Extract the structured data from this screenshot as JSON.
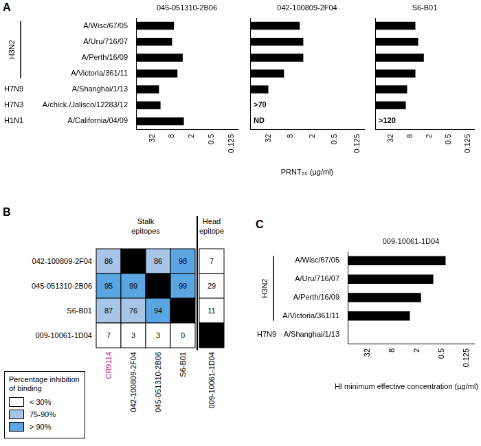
{
  "panel_labels": [
    "A",
    "B",
    "C"
  ],
  "chart_data": [
    {
      "type": "bar",
      "orientation": "horizontal",
      "title": "045-051310-2B06",
      "categories": [
        "A/Wisc/67/05",
        "A/Uru/716/07",
        "A/Perth/16/09",
        "A/Victoria/361/11",
        "A/Shanghai/1/13",
        "A/chick./Jalisco/12283/12",
        "A/California/04/09"
      ],
      "subtypes": [
        "H3N2",
        "H3N2",
        "H3N2",
        "H3N2",
        "H7N9",
        "H7N3",
        "H1N1"
      ],
      "values": [
        7,
        8,
        3.8,
        5.5,
        20,
        18,
        3.5
      ],
      "color": "#000000",
      "log": "x",
      "grid": false,
      "xlim": [
        100,
        0.08
      ],
      "xticks": [
        32,
        8,
        2,
        0.5,
        0.125
      ]
    },
    {
      "type": "bar",
      "orientation": "horizontal",
      "title": "042-100809-2F04",
      "categories": [
        "A/Wisc/67/05",
        "A/Uru/716/07",
        "A/Perth/16/09",
        "A/Victoria/361/11",
        "A/Shanghai/1/13",
        "A/chick./Jalisco/12283/12",
        "A/California/04/09"
      ],
      "values": [
        4.5,
        3.6,
        3.6,
        12,
        32,
        null,
        null
      ],
      "annotations": [
        null,
        null,
        null,
        null,
        null,
        ">70",
        "ND"
      ],
      "color": "#000000",
      "log": "x",
      "grid": false,
      "tick_labels": "x",
      "x_label": "PRNT₅₀ (µg/ml)",
      "xlim": [
        100,
        0.08
      ],
      "xticks": [
        32,
        8,
        2,
        0.5,
        0.125
      ]
    },
    {
      "type": "bar",
      "orientation": "horizontal",
      "title": "S6-B01",
      "categories": [
        "A/Wisc/67/05",
        "A/Uru/716/07",
        "A/Perth/16/09",
        "A/Victoria/361/11",
        "A/Shanghai/1/13",
        "A/chick./Jalisco/12283/12",
        "A/California/04/09"
      ],
      "values": [
        5.5,
        4.5,
        3,
        5.5,
        10,
        11,
        null
      ],
      "annotations": [
        null,
        null,
        null,
        null,
        null,
        null,
        ">120"
      ],
      "color": "#000000",
      "log": "x",
      "grid": false,
      "tick_labels": "x",
      "xlim": [
        100,
        0.08
      ],
      "xticks": [
        32,
        8,
        2,
        0.5,
        0.125
      ]
    },
    {
      "type": "bar",
      "orientation": "horizontal",
      "title": "009-10061-1D04",
      "categories": [
        "A/Wisc/67/05",
        "A/Uru/716/07",
        "A/Perth/16/09",
        "A/Victoria/361/11",
        "A/Shanghai/1/13"
      ],
      "subtypes": [
        "H3N2",
        "H3N2",
        "H3N2",
        "H3N2",
        "H7N9"
      ],
      "values": [
        0.4,
        0.8,
        1.6,
        3,
        null
      ],
      "color": "#000000",
      "log": "x",
      "grid": false,
      "x_label": "HI minimum effective concentration (µg/ml)",
      "xlim": [
        100,
        0.08
      ],
      "xticks": [
        32,
        8,
        2,
        0.5,
        0.125
      ]
    }
  ],
  "table": {
    "columns": [
      {
        "label": "CR9114",
        "color": "#c2188b",
        "group": "Stalk epitopes"
      },
      {
        "label": "042-100809-2F04",
        "color": "#000000",
        "group": "Stalk epitopes"
      },
      {
        "label": "045-051310-2B06",
        "color": "#000000",
        "group": "Stalk epitopes"
      },
      {
        "label": "S6-B01",
        "color": "#000000",
        "group": "Stalk epitopes"
      },
      {
        "label": "009-10061-1D04",
        "color": "#000000",
        "group": "Head epitope"
      }
    ],
    "rows": [
      {
        "label": "042-100809-2F04",
        "values": [
          86,
          null,
          86,
          98,
          7
        ],
        "colors": [
          "#a8c4e6",
          "#000000",
          "#a8c4e6",
          "#5aa5e2",
          "#ffffff"
        ]
      },
      {
        "label": "045-051310-2B06",
        "values": [
          95,
          99,
          null,
          99,
          29
        ],
        "colors": [
          "#5aa5e2",
          "#5aa5e2",
          "#000000",
          "#5aa5e2",
          "#ffffff"
        ]
      },
      {
        "label": "S6-B01",
        "values": [
          87,
          76,
          94,
          null,
          11
        ],
        "colors": [
          "#a8c4e6",
          "#a8c4e6",
          "#5aa5e2",
          "#000000",
          "#ffffff"
        ]
      },
      {
        "label": "009-10061-1D04",
        "values": [
          7,
          3,
          3,
          0,
          null
        ],
        "colors": [
          "#ffffff",
          "#ffffff",
          "#ffffff",
          "#ffffff",
          "#000000"
        ]
      }
    ],
    "legend": {
      "title": "Percentage inhibition of binding",
      "entries": [
        {
          "label": "< 30%",
          "color": "#ffffff"
        },
        {
          "label": "75-90%",
          "color": "#a8c4e6"
        },
        {
          "label": "> 90%",
          "color": "#5aa5e2"
        }
      ]
    }
  }
}
